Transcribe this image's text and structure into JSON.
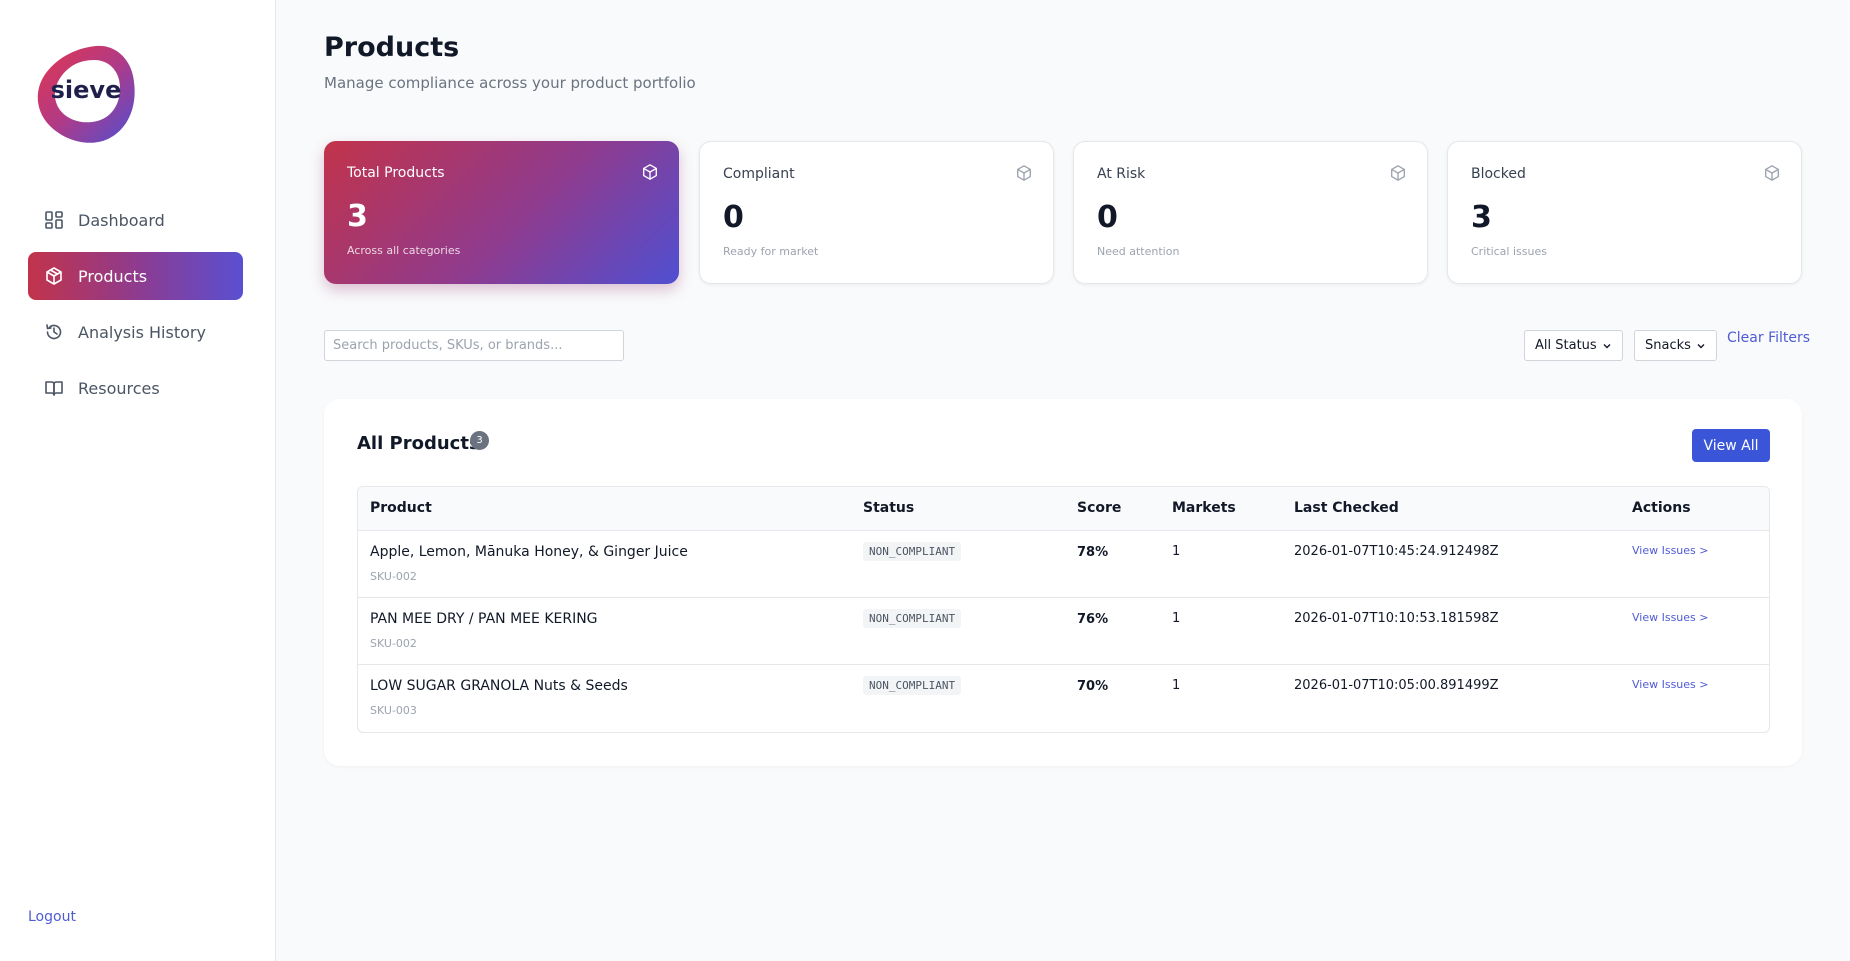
{
  "brand": {
    "name": "sieve"
  },
  "sidebar": {
    "items": [
      {
        "label": "Dashboard",
        "icon": "dashboard-icon"
      },
      {
        "label": "Products",
        "icon": "box-icon",
        "active": true
      },
      {
        "label": "Analysis History",
        "icon": "history-icon"
      },
      {
        "label": "Resources",
        "icon": "book-icon"
      }
    ],
    "logout": "Logout"
  },
  "header": {
    "title": "Products",
    "subtitle": "Manage compliance across your product portfolio"
  },
  "stats": [
    {
      "label": "Total Products",
      "value": "3",
      "sub": "Across all categories",
      "icon": "box-icon"
    },
    {
      "label": "Compliant",
      "value": "0",
      "sub": "Ready for market",
      "icon": "box-icon"
    },
    {
      "label": "At Risk",
      "value": "0",
      "sub": "Need attention",
      "icon": "box-icon"
    },
    {
      "label": "Blocked",
      "value": "3",
      "sub": "Critical issues",
      "icon": "box-icon"
    }
  ],
  "filters": {
    "search_placeholder": "Search products, SKUs, or brands...",
    "status": "All Status",
    "category": "Snacks",
    "clear": "Clear Filters"
  },
  "products_panel": {
    "title": "All Products",
    "count": "3",
    "view_all": "View All",
    "columns": [
      "Product",
      "Status",
      "Score",
      "Markets",
      "Last Checked",
      "Actions"
    ],
    "rows": [
      {
        "name": "Apple, Lemon, Mānuka Honey, & Ginger Juice",
        "sku": "SKU-002",
        "status": "NON_COMPLIANT",
        "score": "78%",
        "markets": "1",
        "checked": "2026-01-07T10:45:24.912498Z",
        "action": "View Issues >"
      },
      {
        "name": "PAN MEE DRY / PAN MEE KERING",
        "sku": "SKU-002",
        "status": "NON_COMPLIANT",
        "score": "76%",
        "markets": "1",
        "checked": "2026-01-07T10:10:53.181598Z",
        "action": "View Issues >"
      },
      {
        "name": "LOW SUGAR GRANOLA Nuts & Seeds",
        "sku": "SKU-003",
        "status": "NON_COMPLIANT",
        "score": "70%",
        "markets": "1",
        "checked": "2026-01-07T10:05:00.891499Z",
        "action": "View Issues >"
      }
    ]
  },
  "colors": {
    "accent": "#3b55d9",
    "gradient_start": "#c2334a",
    "gradient_end": "#5a4fd1"
  }
}
